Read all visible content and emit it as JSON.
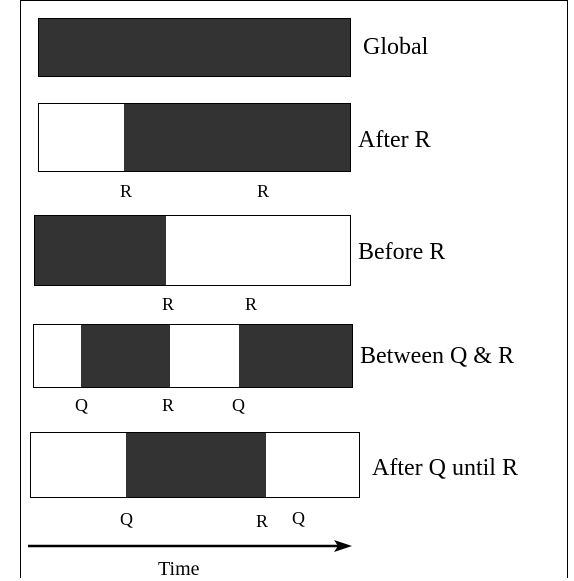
{
  "colors": {
    "filled": "#333333",
    "empty": "#ffffff",
    "stroke": "#000000"
  },
  "rows": [
    {
      "id": "global",
      "label": "Global",
      "segments": [
        "filled"
      ],
      "events": []
    },
    {
      "id": "after-r",
      "label": "After R",
      "segments": [
        "empty",
        "filled"
      ],
      "events": [
        "R",
        "R"
      ]
    },
    {
      "id": "before-r",
      "label": "Before R",
      "segments": [
        "filled",
        "empty"
      ],
      "events": [
        "R",
        "R"
      ]
    },
    {
      "id": "between-q-r",
      "label": "Between Q & R",
      "segments": [
        "empty",
        "filled",
        "empty",
        "filled"
      ],
      "events": [
        "Q",
        "R",
        "Q"
      ]
    },
    {
      "id": "after-q-until-r",
      "label": "After Q until R",
      "segments": [
        "empty",
        "filled",
        "empty"
      ],
      "events": [
        "Q",
        "R",
        "Q"
      ]
    }
  ],
  "axis": {
    "label": "Time"
  }
}
